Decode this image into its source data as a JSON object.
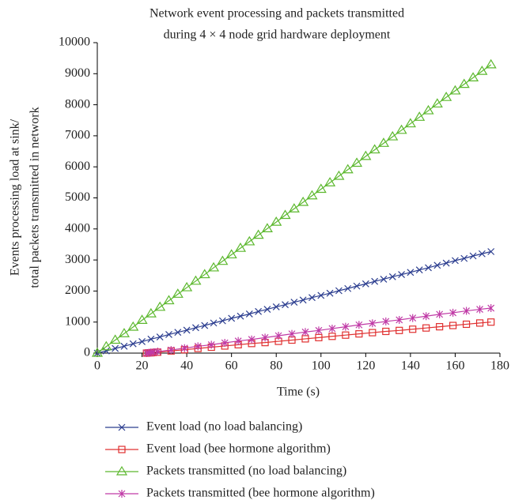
{
  "chart_data": {
    "type": "line",
    "title": [
      "Network event processing and packets transmitted",
      "during 4 × 4 node grid hardware deployment"
    ],
    "xlabel": "Time (s)",
    "ylabel": [
      "Events processing load at sink/",
      "total packets transmitted in network"
    ],
    "xlim": [
      0,
      180
    ],
    "xticks": [
      0,
      20,
      40,
      60,
      80,
      100,
      120,
      140,
      160,
      180
    ],
    "ylim": [
      0,
      10000
    ],
    "yticks": [
      0,
      1000,
      2000,
      3000,
      4000,
      5000,
      6000,
      7000,
      8000,
      9000,
      10000
    ],
    "series": [
      {
        "name": "Event load (no load balancing)",
        "color": "#2b3d8f",
        "marker": "x",
        "x": [
          0,
          4,
          8,
          12,
          16,
          20,
          24,
          28,
          32,
          36,
          40,
          44,
          48,
          52,
          56,
          60,
          64,
          68,
          72,
          76,
          80,
          84,
          88,
          92,
          96,
          100,
          104,
          108,
          112,
          116,
          120,
          124,
          128,
          132,
          136,
          140,
          144,
          148,
          152,
          156,
          160,
          164,
          168,
          172,
          176
        ],
        "values": [
          0,
          70,
          150,
          220,
          300,
          370,
          450,
          520,
          600,
          670,
          740,
          820,
          890,
          970,
          1040,
          1120,
          1190,
          1260,
          1340,
          1410,
          1490,
          1560,
          1640,
          1710,
          1790,
          1860,
          1930,
          2010,
          2080,
          2160,
          2230,
          2310,
          2380,
          2460,
          2530,
          2600,
          2680,
          2750,
          2830,
          2900,
          2980,
          3050,
          3130,
          3200,
          3270
        ]
      },
      {
        "name": "Event load (bee hormone algorithm)",
        "color": "#e03030",
        "marker": "square",
        "x": [
          22,
          23,
          24,
          25,
          27,
          33,
          39,
          45,
          51,
          57,
          63,
          69,
          75,
          81,
          87,
          93,
          99,
          105,
          111,
          117,
          123,
          129,
          135,
          141,
          147,
          153,
          159,
          165,
          171,
          176
        ],
        "values": [
          0,
          10,
          10,
          20,
          30,
          70,
          110,
          150,
          190,
          230,
          270,
          310,
          340,
          380,
          420,
          460,
          500,
          540,
          580,
          620,
          660,
          700,
          730,
          770,
          810,
          850,
          890,
          930,
          970,
          1000
        ]
      },
      {
        "name": "Packets transmitted (no load balancing)",
        "color": "#5cb82e",
        "marker": "triangle",
        "x": [
          0,
          4,
          8,
          12,
          16,
          20,
          24,
          28,
          32,
          36,
          40,
          44,
          48,
          52,
          56,
          60,
          64,
          68,
          72,
          76,
          80,
          84,
          88,
          92,
          96,
          100,
          104,
          108,
          112,
          116,
          120,
          124,
          128,
          132,
          136,
          140,
          144,
          148,
          152,
          156,
          160,
          164,
          168,
          172,
          176
        ],
        "values": [
          0,
          210,
          420,
          630,
          840,
          1060,
          1270,
          1480,
          1690,
          1900,
          2110,
          2320,
          2530,
          2750,
          2960,
          3170,
          3380,
          3590,
          3800,
          4010,
          4220,
          4440,
          4650,
          4860,
          5070,
          5280,
          5490,
          5700,
          5910,
          6120,
          6340,
          6550,
          6760,
          6970,
          7180,
          7390,
          7600,
          7810,
          8030,
          8240,
          8450,
          8660,
          8870,
          9080,
          9290
        ]
      },
      {
        "name": "Packets transmitted (bee hormone algorithm)",
        "color": "#c03aa6",
        "marker": "star",
        "x": [
          22,
          23,
          24,
          25,
          27,
          33,
          39,
          45,
          51,
          57,
          63,
          69,
          75,
          81,
          87,
          93,
          99,
          105,
          111,
          117,
          123,
          129,
          135,
          141,
          147,
          153,
          159,
          165,
          171,
          176
        ],
        "values": [
          0,
          10,
          20,
          30,
          50,
          100,
          160,
          220,
          270,
          330,
          390,
          440,
          500,
          560,
          620,
          680,
          730,
          790,
          850,
          910,
          960,
          1020,
          1070,
          1130,
          1190,
          1250,
          1300,
          1360,
          1410,
          1450
        ]
      }
    ]
  }
}
